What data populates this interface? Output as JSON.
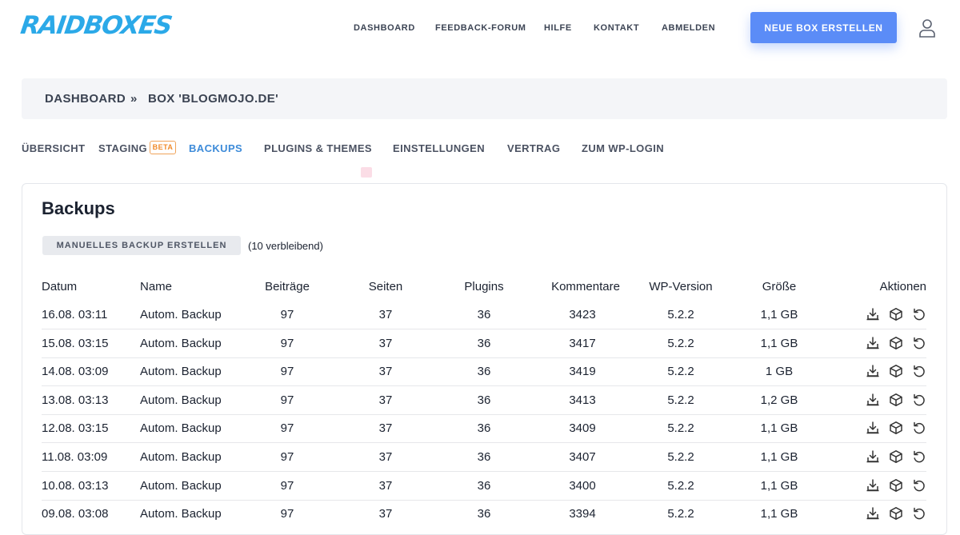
{
  "brand": {
    "logo": "RAIDBOXES",
    "accent": "#2ba9e8",
    "button_color": "#5b8cf7",
    "active_tab_color": "#3d8bd9"
  },
  "topnav": {
    "items": [
      "DASHBOARD",
      "FEEDBACK-FORUM",
      "HILFE",
      "KONTAKT",
      "ABMELDEN"
    ],
    "cta": "NEUE BOX ERSTELLEN",
    "user_icon": "user-icon"
  },
  "breadcrumb": {
    "home": "DASHBOARD",
    "separator": "»",
    "current": "BOX 'BLOGMOJO.DE'"
  },
  "tabs": {
    "items": [
      "ÜBERSICHT",
      "STAGING",
      "BACKUPS",
      "PLUGINS & THEMES",
      "EINSTELLUNGEN",
      "VERTRAG",
      "ZUM WP-LOGIN"
    ],
    "beta": "BETA",
    "active": "BACKUPS"
  },
  "backups": {
    "title": "Backups",
    "manual_button": "MANUELLES BACKUP ERSTELLEN",
    "remaining": "(10 verbleibend)",
    "columns": [
      "Datum",
      "Name",
      "Beiträge",
      "Seiten",
      "Plugins",
      "Kommentare",
      "WP-Version",
      "Größe",
      "Aktionen"
    ],
    "action_icons": [
      "download-icon",
      "box-icon",
      "restore-icon"
    ],
    "rows": [
      [
        "16.08. 03:11",
        "Autom. Backup",
        "97",
        "37",
        "36",
        "3423",
        "5.2.2",
        "1,1 GB"
      ],
      [
        "15.08. 03:15",
        "Autom. Backup",
        "97",
        "37",
        "36",
        "3417",
        "5.2.2",
        "1,1 GB"
      ],
      [
        "14.08. 03:09",
        "Autom. Backup",
        "97",
        "37",
        "36",
        "3419",
        "5.2.2",
        "1 GB"
      ],
      [
        "13.08. 03:13",
        "Autom. Backup",
        "97",
        "37",
        "36",
        "3413",
        "5.2.2",
        "1,2 GB"
      ],
      [
        "12.08. 03:15",
        "Autom. Backup",
        "97",
        "37",
        "36",
        "3409",
        "5.2.2",
        "1,1 GB"
      ],
      [
        "11.08. 03:09",
        "Autom. Backup",
        "97",
        "37",
        "36",
        "3407",
        "5.2.2",
        "1,1 GB"
      ],
      [
        "10.08. 03:13",
        "Autom. Backup",
        "97",
        "37",
        "36",
        "3400",
        "5.2.2",
        "1,1 GB"
      ],
      [
        "09.08. 03:08",
        "Autom. Backup",
        "97",
        "37",
        "36",
        "3394",
        "5.2.2",
        "1,1 GB"
      ]
    ]
  }
}
